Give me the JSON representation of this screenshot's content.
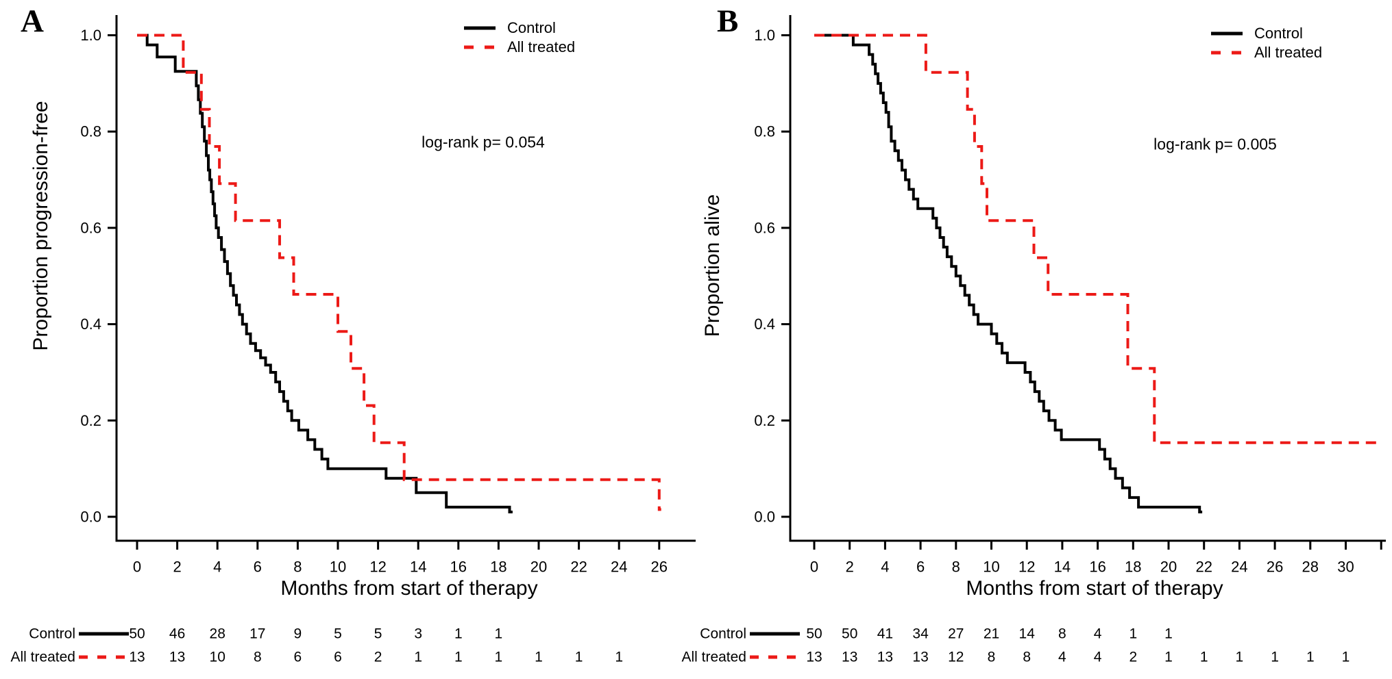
{
  "figure": {
    "background": "#ffffff",
    "black": "#000000",
    "accent_red": "#ec1a17"
  },
  "chart_data": [
    {
      "type": "line",
      "subtype": "kaplan-meier-step",
      "panel_label": "A",
      "ylabel": "Proportion progression-free",
      "xlabel": "Months from start of therapy",
      "annotation": "log-rank p= 0.054",
      "x_ticks": [
        0,
        2,
        4,
        6,
        8,
        10,
        12,
        14,
        16,
        18,
        20,
        22,
        24,
        26
      ],
      "unlabeled_x_ticks": [],
      "y_ticks": [
        {
          "label": "1.0",
          "value": 1.0
        },
        {
          "label": "0.8",
          "value": 0.8
        },
        {
          "label": "0.6",
          "value": 0.6
        },
        {
          "label": "0.4",
          "value": 0.4
        },
        {
          "label": "0.2",
          "value": 0.2
        },
        {
          "label": "0.0",
          "value": 0.0
        }
      ],
      "xlim": [
        0,
        27.8
      ],
      "ylim": [
        0,
        1
      ],
      "grid": false,
      "legend_position": "top-right-inside",
      "series": [
        {
          "name": "Control",
          "color": "#000000",
          "line_style": "solid",
          "end_time": 18.7,
          "steps": [
            [
              0,
              1.0
            ],
            [
              0.5,
              0.98
            ],
            [
              1.0,
              0.955
            ],
            [
              1.9,
              0.925
            ],
            [
              2.95,
              0.895
            ],
            [
              3.05,
              0.866
            ],
            [
              3.15,
              0.838
            ],
            [
              3.25,
              0.81
            ],
            [
              3.35,
              0.78
            ],
            [
              3.45,
              0.75
            ],
            [
              3.55,
              0.72
            ],
            [
              3.62,
              0.7
            ],
            [
              3.7,
              0.675
            ],
            [
              3.78,
              0.65
            ],
            [
              3.86,
              0.625
            ],
            [
              3.94,
              0.6
            ],
            [
              4.05,
              0.58
            ],
            [
              4.2,
              0.555
            ],
            [
              4.35,
              0.53
            ],
            [
              4.5,
              0.505
            ],
            [
              4.65,
              0.48
            ],
            [
              4.8,
              0.46
            ],
            [
              4.95,
              0.44
            ],
            [
              5.1,
              0.42
            ],
            [
              5.25,
              0.4
            ],
            [
              5.45,
              0.38
            ],
            [
              5.65,
              0.36
            ],
            [
              5.9,
              0.345
            ],
            [
              6.15,
              0.33
            ],
            [
              6.4,
              0.315
            ],
            [
              6.65,
              0.3
            ],
            [
              6.9,
              0.28
            ],
            [
              7.1,
              0.26
            ],
            [
              7.3,
              0.24
            ],
            [
              7.5,
              0.22
            ],
            [
              7.7,
              0.2
            ],
            [
              8.05,
              0.18
            ],
            [
              8.5,
              0.16
            ],
            [
              8.85,
              0.14
            ],
            [
              9.2,
              0.12
            ],
            [
              9.5,
              0.1
            ],
            [
              12.4,
              0.08
            ],
            [
              13.9,
              0.05
            ],
            [
              15.4,
              0.02
            ],
            [
              18.55,
              0.01
            ]
          ]
        },
        {
          "name": "All treated",
          "color": "#ec1a17",
          "line_style": "dashed",
          "end_time": 26.1,
          "steps": [
            [
              0,
              1.0
            ],
            [
              2.3,
              0.923
            ],
            [
              3.2,
              0.846
            ],
            [
              3.6,
              0.769
            ],
            [
              4.1,
              0.692
            ],
            [
              4.9,
              0.615
            ],
            [
              7.1,
              0.538
            ],
            [
              7.8,
              0.462
            ],
            [
              10.0,
              0.385
            ],
            [
              10.65,
              0.308
            ],
            [
              11.3,
              0.231
            ],
            [
              11.8,
              0.154
            ],
            [
              13.3,
              0.077
            ],
            [
              26.0,
              0.015
            ]
          ]
        }
      ],
      "risk_table": {
        "months": [
          0,
          2,
          4,
          6,
          8,
          10,
          12,
          14,
          16,
          18,
          20,
          22,
          24
        ],
        "rows": [
          {
            "label": "Control",
            "counts": [
              50,
              46,
              28,
              17,
              9,
              5,
              5,
              3,
              1,
              1
            ]
          },
          {
            "label": "All treated",
            "counts": [
              13,
              13,
              10,
              8,
              6,
              6,
              2,
              1,
              1,
              1,
              1,
              1,
              1
            ]
          }
        ]
      }
    },
    {
      "type": "line",
      "subtype": "kaplan-meier-step",
      "panel_label": "B",
      "ylabel": "Proportion alive",
      "xlabel": "Months from start of therapy",
      "annotation": "log-rank p= 0.005",
      "x_ticks": [
        0,
        2,
        4,
        6,
        8,
        10,
        12,
        14,
        16,
        18,
        20,
        22,
        24,
        26,
        28,
        30
      ],
      "unlabeled_x_ticks": [
        32
      ],
      "y_ticks": [
        {
          "label": "1.0",
          "value": 1.0
        },
        {
          "label": "0.8",
          "value": 0.8
        },
        {
          "label": "0.6",
          "value": 0.6
        },
        {
          "label": "0.4",
          "value": 0.4
        },
        {
          "label": "0.2",
          "value": 0.2
        },
        {
          "label": "0.0",
          "value": 0.0
        }
      ],
      "xlim": [
        0,
        32.3
      ],
      "ylim": [
        0,
        1
      ],
      "grid": false,
      "legend_position": "top-right-inside",
      "series": [
        {
          "name": "Control",
          "color": "#000000",
          "line_style": "solid",
          "end_time": 21.9,
          "steps": [
            [
              0,
              1.0
            ],
            [
              2.2,
              0.98
            ],
            [
              3.1,
              0.96
            ],
            [
              3.3,
              0.94
            ],
            [
              3.45,
              0.92
            ],
            [
              3.6,
              0.9
            ],
            [
              3.75,
              0.88
            ],
            [
              3.9,
              0.86
            ],
            [
              4.05,
              0.84
            ],
            [
              4.2,
              0.81
            ],
            [
              4.35,
              0.78
            ],
            [
              4.55,
              0.76
            ],
            [
              4.75,
              0.74
            ],
            [
              4.95,
              0.72
            ],
            [
              5.15,
              0.7
            ],
            [
              5.35,
              0.68
            ],
            [
              5.6,
              0.66
            ],
            [
              5.85,
              0.64
            ],
            [
              6.7,
              0.62
            ],
            [
              6.9,
              0.6
            ],
            [
              7.1,
              0.58
            ],
            [
              7.3,
              0.56
            ],
            [
              7.5,
              0.54
            ],
            [
              7.75,
              0.52
            ],
            [
              8.0,
              0.5
            ],
            [
              8.25,
              0.48
            ],
            [
              8.5,
              0.46
            ],
            [
              8.75,
              0.44
            ],
            [
              9.0,
              0.42
            ],
            [
              9.25,
              0.4
            ],
            [
              10.0,
              0.38
            ],
            [
              10.3,
              0.36
            ],
            [
              10.6,
              0.34
            ],
            [
              10.9,
              0.32
            ],
            [
              11.9,
              0.3
            ],
            [
              12.2,
              0.28
            ],
            [
              12.45,
              0.26
            ],
            [
              12.7,
              0.24
            ],
            [
              12.95,
              0.22
            ],
            [
              13.25,
              0.2
            ],
            [
              13.6,
              0.18
            ],
            [
              13.95,
              0.16
            ],
            [
              16.1,
              0.14
            ],
            [
              16.4,
              0.12
            ],
            [
              16.7,
              0.1
            ],
            [
              17.0,
              0.08
            ],
            [
              17.4,
              0.06
            ],
            [
              17.8,
              0.04
            ],
            [
              18.3,
              0.02
            ],
            [
              21.75,
              0.01
            ]
          ]
        },
        {
          "name": "All treated",
          "color": "#ec1a17",
          "line_style": "dashed",
          "end_time": 31.8,
          "steps": [
            [
              0,
              1.0
            ],
            [
              6.3,
              0.923
            ],
            [
              8.65,
              0.846
            ],
            [
              9.05,
              0.769
            ],
            [
              9.45,
              0.692
            ],
            [
              9.75,
              0.615
            ],
            [
              12.4,
              0.538
            ],
            [
              13.2,
              0.462
            ],
            [
              17.7,
              0.308
            ],
            [
              19.2,
              0.154
            ]
          ]
        }
      ],
      "risk_table": {
        "months": [
          0,
          2,
          4,
          6,
          8,
          10,
          12,
          14,
          16,
          18,
          20,
          22,
          24,
          26,
          28,
          30
        ],
        "rows": [
          {
            "label": "Control",
            "counts": [
              50,
              50,
              41,
              34,
              27,
              21,
              14,
              8,
              4,
              1,
              1
            ]
          },
          {
            "label": "All treated",
            "counts": [
              13,
              13,
              13,
              13,
              12,
              8,
              8,
              4,
              4,
              2,
              1,
              1,
              1,
              1,
              1,
              1
            ]
          }
        ]
      }
    }
  ]
}
